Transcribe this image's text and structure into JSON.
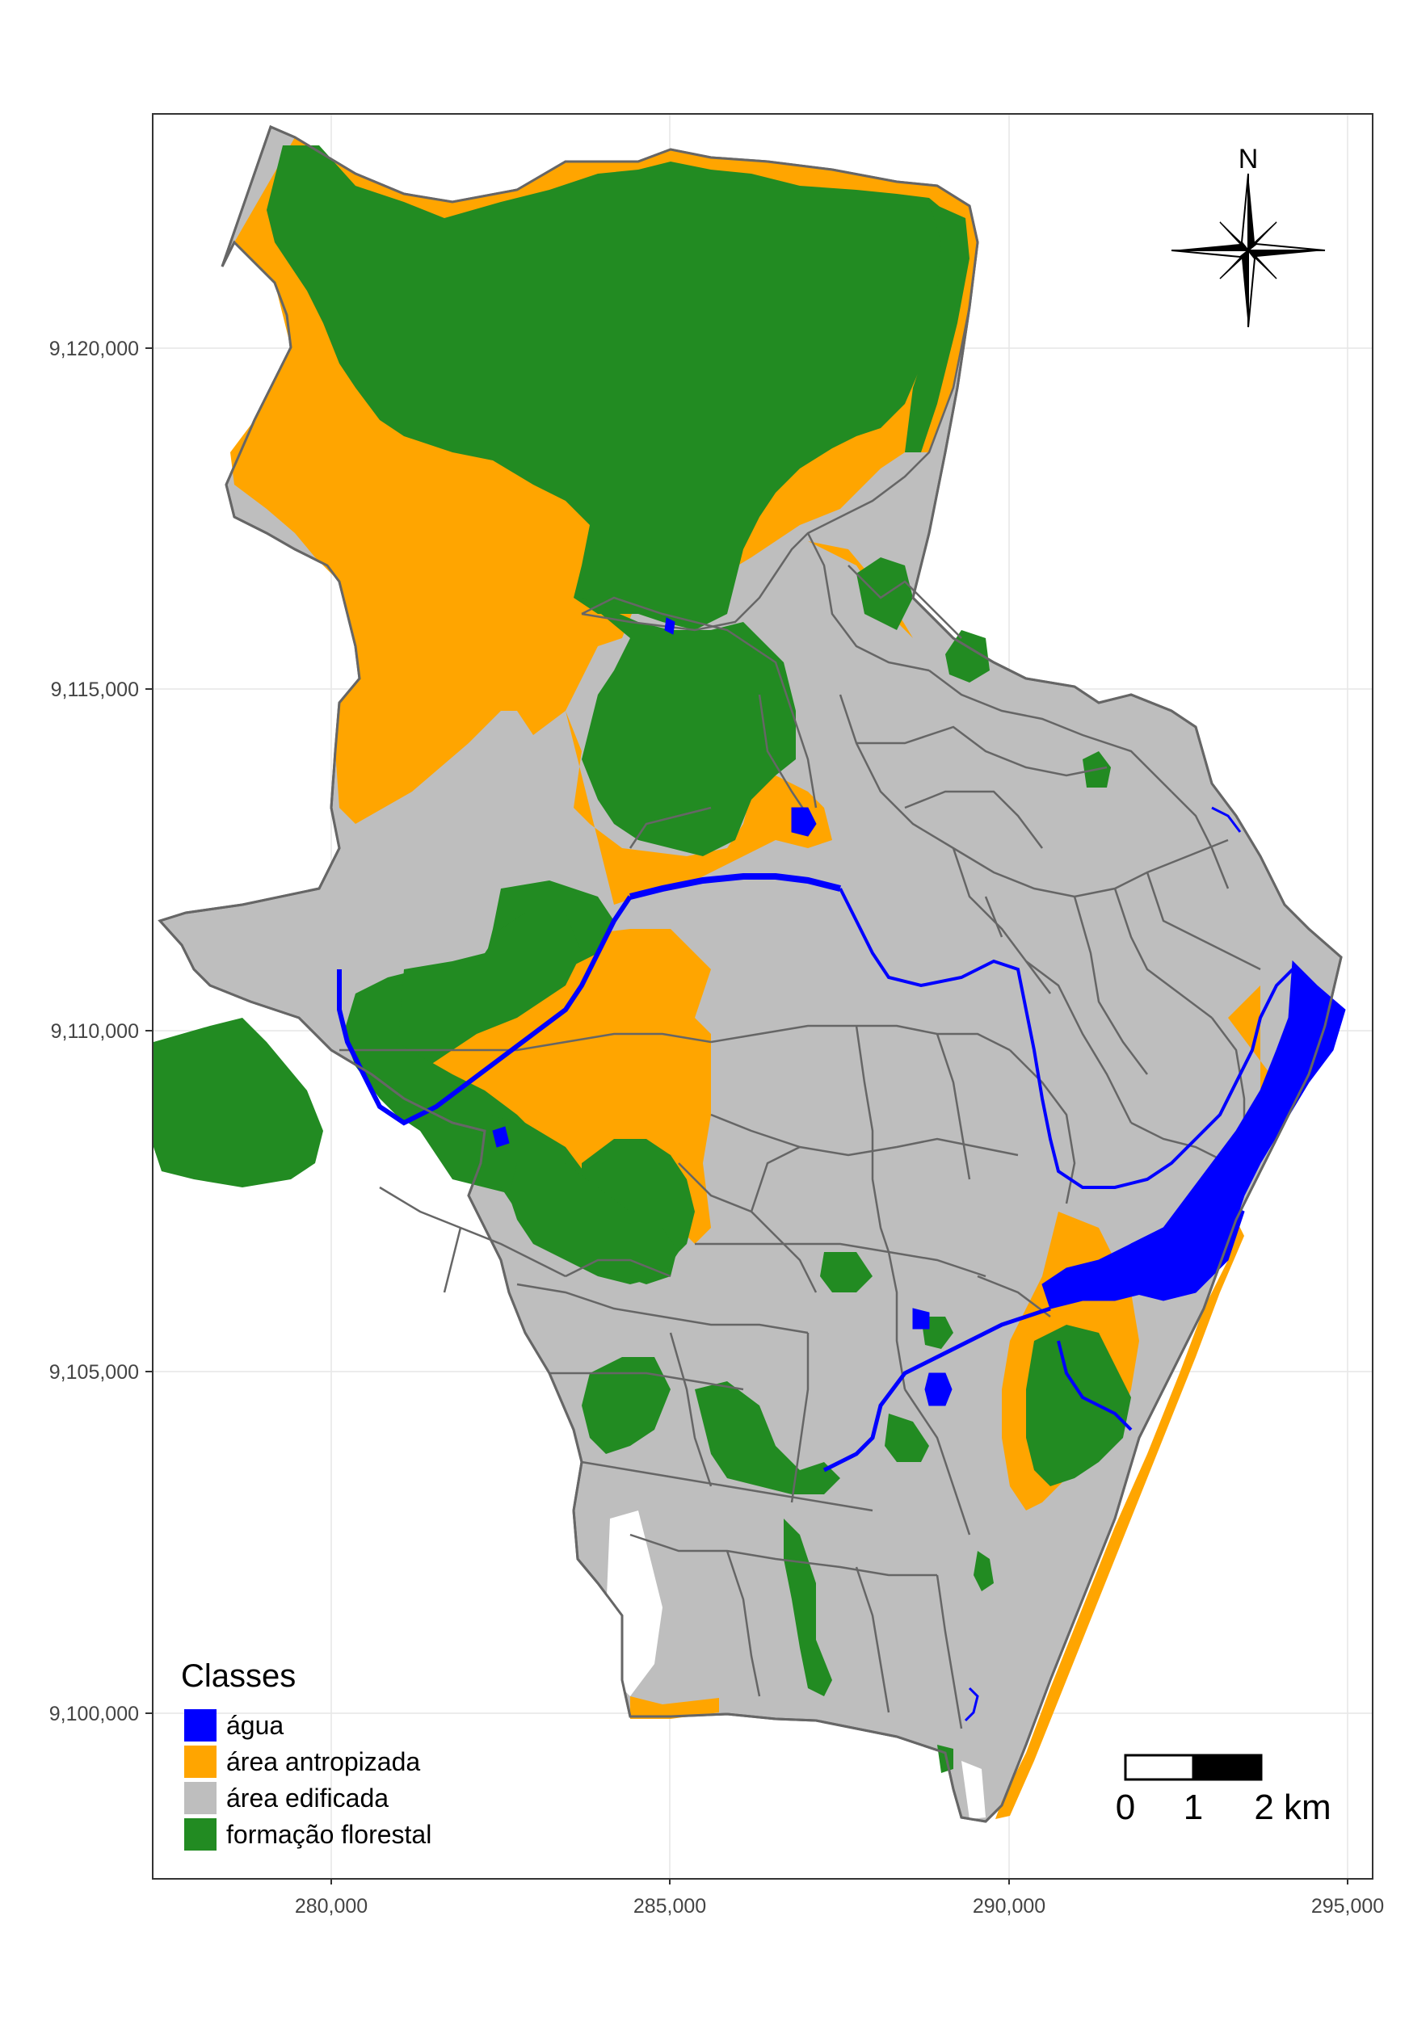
{
  "map": {
    "x_ticks": [
      "280,000",
      "285,000",
      "290,000",
      "295,000"
    ],
    "y_ticks": [
      "9,120,000",
      "9,115,000",
      "9,110,000",
      "9,105,000",
      "9,100,000"
    ],
    "north_label": "N",
    "scale_bar": {
      "labels": [
        "0",
        "1",
        "2 km"
      ]
    },
    "legend": {
      "title": "Classes",
      "items": [
        {
          "label": "água",
          "color": "#0000ff"
        },
        {
          "label": "área antropizada",
          "color": "#ffa500"
        },
        {
          "label": "área edificada",
          "color": "#bebebe"
        },
        {
          "label": "formação florestal",
          "color": "#228b22"
        }
      ]
    },
    "colors": {
      "water": "#0000ff",
      "anthropized": "#ffa500",
      "built": "#bebebe",
      "forest": "#228b22",
      "boundary": "#666666",
      "grid": "#e6e6e6"
    }
  }
}
